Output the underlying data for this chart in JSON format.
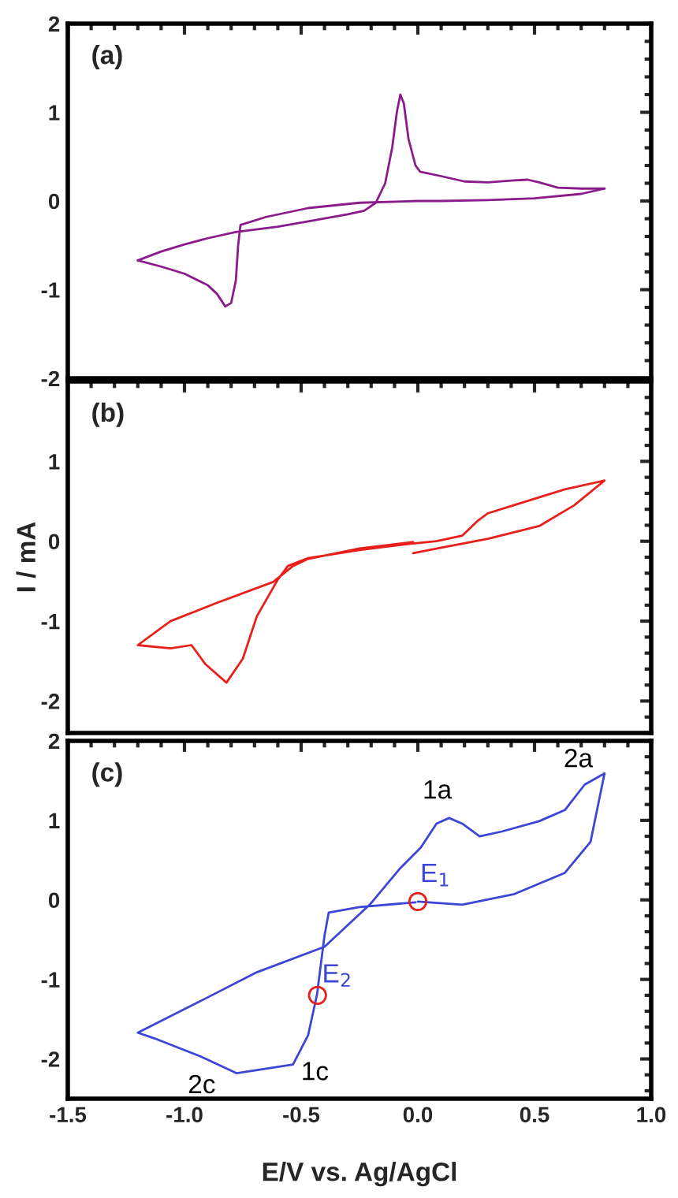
{
  "chart_data": [
    {
      "type": "line",
      "title": "(a)",
      "xlim": [
        -1.5,
        1.0
      ],
      "xticks": [
        {
          "value": -1.5,
          "label": null
        },
        {
          "value": -1.0,
          "label": null
        },
        {
          "value": -0.5,
          "label": null
        },
        {
          "value": 0.0,
          "label": null
        },
        {
          "value": 0.5,
          "label": null
        },
        {
          "value": 1.0,
          "label": null
        }
      ],
      "ylim": [
        -2,
        2
      ],
      "yticks": [
        -2,
        -1,
        0,
        1,
        2
      ],
      "tick_labels": "y",
      "series": [
        {
          "color": "#8b1a8b",
          "x": [
            -1.2,
            -1.1,
            -1.0,
            -0.9,
            -0.78,
            -0.6,
            -0.47,
            -0.3,
            -0.23,
            -0.18,
            -0.14,
            -0.11,
            -0.09,
            -0.075,
            -0.06,
            -0.04,
            -0.01,
            0.01,
            0.1,
            0.2,
            0.3,
            0.4,
            0.47,
            0.52,
            0.6,
            0.7,
            0.8
          ],
          "values": [
            -0.67,
            -0.57,
            -0.49,
            -0.42,
            -0.35,
            -0.29,
            -0.23,
            -0.15,
            -0.11,
            -0.02,
            0.2,
            0.6,
            1.0,
            1.2,
            1.1,
            0.7,
            0.4,
            0.33,
            0.28,
            0.22,
            0.21,
            0.23,
            0.24,
            0.21,
            0.15,
            0.14,
            0.14
          ]
        },
        {
          "color": "#8b1a8b",
          "x": [
            0.8,
            0.7,
            0.5,
            0.3,
            0.1,
            0.0,
            -0.25,
            -0.47,
            -0.65,
            -0.76,
            -0.77,
            -0.78,
            -0.8,
            -0.825,
            -0.86,
            -0.9,
            -1.0,
            -1.1,
            -1.2
          ],
          "values": [
            0.14,
            0.08,
            0.03,
            0.01,
            0.0,
            0.0,
            -0.02,
            -0.08,
            -0.18,
            -0.27,
            -0.5,
            -0.9,
            -1.15,
            -1.19,
            -1.05,
            -0.95,
            -0.82,
            -0.74,
            -0.67
          ]
        }
      ]
    },
    {
      "type": "line",
      "title": "(b)",
      "ylabel": "I / mA",
      "xlim": [
        -1.5,
        1.0
      ],
      "xticks": [
        {
          "value": -1.5,
          "label": null
        },
        {
          "value": -1.0,
          "label": null
        },
        {
          "value": -0.5,
          "label": null
        },
        {
          "value": 0.0,
          "label": null
        },
        {
          "value": 0.5,
          "label": null
        },
        {
          "value": 1.0,
          "label": null
        }
      ],
      "ylim": [
        -2.4,
        2.0
      ],
      "yticks": [
        -2,
        -1,
        0,
        1
      ],
      "tick_labels": "y",
      "series": [
        {
          "color": "#e8201c",
          "x": [
            -0.02,
            0.1,
            0.3,
            0.52,
            0.67,
            0.8,
            0.63,
            0.41,
            0.3,
            0.254,
            0.19,
            0.08,
            -0.03,
            -0.25,
            -0.47,
            -0.557,
            -0.6,
            -0.69,
            -0.75,
            -0.82,
            -0.91,
            -0.97,
            -1.06,
            -1.2,
            -1.06,
            -0.86,
            -0.62,
            -0.535,
            -0.47,
            -0.25,
            -0.02
          ],
          "values": [
            -0.15,
            -0.08,
            0.03,
            0.19,
            0.45,
            0.76,
            0.65,
            0.45,
            0.35,
            0.25,
            0.07,
            0.0,
            -0.03,
            -0.11,
            -0.21,
            -0.31,
            -0.48,
            -0.94,
            -1.47,
            -1.77,
            -1.54,
            -1.3,
            -1.34,
            -1.3,
            -1.0,
            -0.77,
            -0.51,
            -0.31,
            -0.22,
            -0.09,
            -0.01
          ]
        }
      ]
    },
    {
      "type": "line",
      "title": "(c)",
      "xlabel": "E/V vs. Ag/AgCl",
      "xlim": [
        -1.5,
        1.0
      ],
      "xticks": [
        {
          "value": -1.5,
          "label": "-1.5"
        },
        {
          "value": -1.0,
          "label": "-1.0"
        },
        {
          "value": -0.5,
          "label": "-0.5"
        },
        {
          "value": 0.0,
          "label": "0.0"
        },
        {
          "value": 0.5,
          "label": "0.5"
        },
        {
          "value": 1.0,
          "label": "1.0"
        }
      ],
      "ylim": [
        -2.5,
        2
      ],
      "yticks": [
        -2,
        -1,
        0,
        1,
        2
      ],
      "series": [
        {
          "color": "#3c46d6",
          "x": [
            0.0,
            0.19,
            0.41,
            0.63,
            0.74,
            0.8
          ],
          "values": [
            -0.02,
            -0.06,
            0.07,
            0.34,
            0.73,
            1.59
          ]
        },
        {
          "color": "#3c46d6",
          "x": [
            0.8,
            0.715,
            0.63,
            0.52,
            0.36,
            0.265,
            0.19,
            0.134,
            0.08,
            0.013,
            -0.075,
            -0.206,
            -0.4,
            -0.69,
            -0.91,
            -1.2,
            -1.13,
            -0.93,
            -0.776,
            -0.6,
            -0.535,
            -0.47,
            -0.432,
            -0.4,
            -0.382,
            -0.25,
            -0.01
          ],
          "values": [
            1.59,
            1.45,
            1.13,
            0.99,
            0.86,
            0.8,
            0.96,
            1.03,
            0.96,
            0.66,
            0.4,
            -0.06,
            -0.59,
            -0.91,
            -1.24,
            -1.67,
            -1.74,
            -1.97,
            -2.18,
            -2.1,
            -2.07,
            -1.7,
            -1.19,
            -0.45,
            -0.16,
            -0.09,
            -0.03
          ]
        },
        {
          "type": "scatter",
          "marker": "circle",
          "color": "#e8201c",
          "x": [
            0.0,
            -0.43
          ],
          "values": [
            -0.02,
            -1.2
          ]
        }
      ],
      "annotations": [
        {
          "text": "1a",
          "x": 0.13,
          "y": 1.03
        },
        {
          "text": "2a",
          "x": 0.8,
          "y": 1.59
        },
        {
          "text": "1c",
          "x": -0.535,
          "y": -2.07
        },
        {
          "text": "2c",
          "x": -0.776,
          "y": -2.18
        },
        {
          "text": "E$_{1}$",
          "x": 0.0,
          "y": -0.02
        },
        {
          "text": "E$_{2}$",
          "x": -0.43,
          "y": -1.2
        }
      ]
    }
  ]
}
